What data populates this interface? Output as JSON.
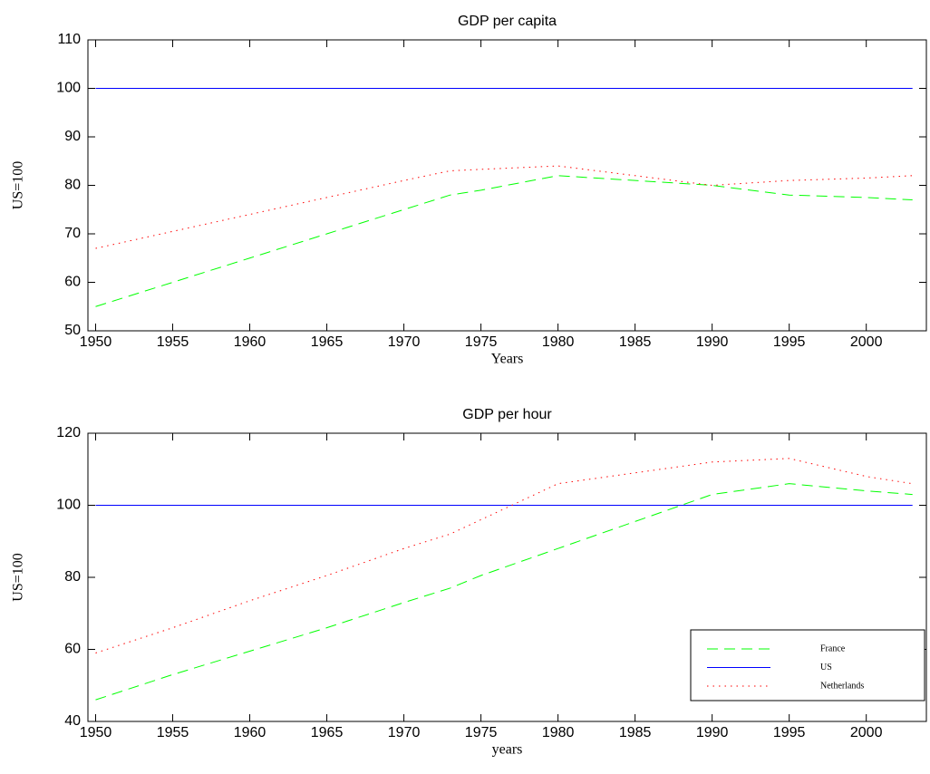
{
  "chart_data": [
    {
      "type": "line",
      "title": "GDP per capita",
      "xlabel": "Years",
      "ylabel": "US=100",
      "x": [
        1950,
        1955,
        1960,
        1965,
        1970,
        1973,
        1975,
        1980,
        1985,
        1990,
        1995,
        2000,
        2003
      ],
      "series": [
        {
          "name": "France",
          "color": "#00ff00",
          "linestyle": "dashed",
          "values": [
            55,
            60,
            65,
            70,
            75,
            78,
            79,
            82,
            81,
            80,
            78,
            77.5,
            77
          ]
        },
        {
          "name": "US",
          "color": "#0000ff",
          "linestyle": "solid",
          "values": [
            100,
            100,
            100,
            100,
            100,
            100,
            100,
            100,
            100,
            100,
            100,
            100,
            100
          ]
        },
        {
          "name": "Netherlands",
          "color": "#ff0000",
          "linestyle": "dotted",
          "values": [
            67,
            70.5,
            74,
            77.5,
            81,
            83,
            83.3,
            84,
            82,
            80,
            81,
            81.5,
            82
          ]
        }
      ],
      "xlim": [
        1949.5,
        2003.9
      ],
      "ylim": [
        50,
        110
      ],
      "xticks": [
        1950,
        1955,
        1960,
        1965,
        1970,
        1975,
        1980,
        1985,
        1990,
        1995,
        2000
      ],
      "yticks": [
        50,
        60,
        70,
        80,
        90,
        100,
        110
      ]
    },
    {
      "type": "line",
      "title": "GDP per hour",
      "xlabel": "years",
      "ylabel": "US=100",
      "x": [
        1950,
        1955,
        1960,
        1965,
        1970,
        1973,
        1975,
        1980,
        1985,
        1990,
        1995,
        2000,
        2003
      ],
      "series": [
        {
          "name": "France",
          "color": "#00ff00",
          "linestyle": "dashed",
          "values": [
            46,
            53,
            59.5,
            66,
            73,
            77,
            80.5,
            88,
            95.5,
            103,
            106,
            104,
            103
          ]
        },
        {
          "name": "US",
          "color": "#0000ff",
          "linestyle": "solid",
          "values": [
            100,
            100,
            100,
            100,
            100,
            100,
            100,
            100,
            100,
            100,
            100,
            100,
            100
          ]
        },
        {
          "name": "Netherlands",
          "color": "#ff0000",
          "linestyle": "dotted",
          "values": [
            59,
            66,
            73.5,
            80.5,
            88,
            92,
            96,
            106,
            109,
            112,
            113,
            108,
            106
          ]
        }
      ],
      "xlim": [
        1949.5,
        2003.9
      ],
      "ylim": [
        40,
        120
      ],
      "xticks": [
        1950,
        1955,
        1960,
        1965,
        1970,
        1975,
        1980,
        1985,
        1990,
        1995,
        2000
      ],
      "yticks": [
        40,
        60,
        80,
        100,
        120
      ],
      "legend": "lower right"
    }
  ]
}
